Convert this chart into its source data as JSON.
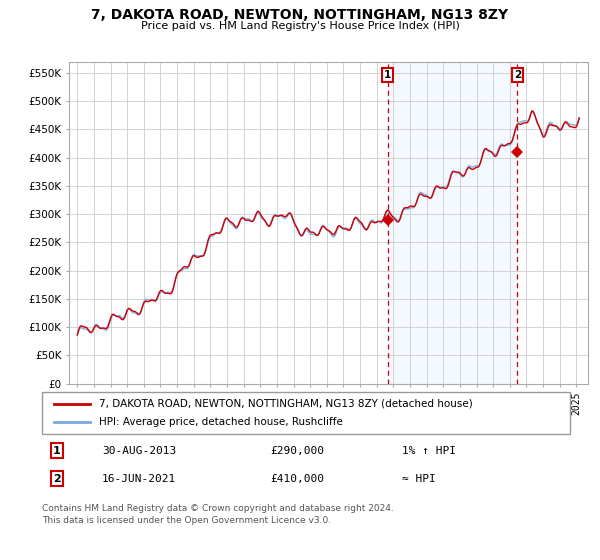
{
  "title": "7, DAKOTA ROAD, NEWTON, NOTTINGHAM, NG13 8ZY",
  "subtitle": "Price paid vs. HM Land Registry's House Price Index (HPI)",
  "legend_line1": "7, DAKOTA ROAD, NEWTON, NOTTINGHAM, NG13 8ZY (detached house)",
  "legend_line2": "HPI: Average price, detached house, Rushcliffe",
  "annotation1_date": "30-AUG-2013",
  "annotation1_price": "£290,000",
  "annotation1_hpi": "1% ↑ HPI",
  "annotation2_date": "16-JUN-2021",
  "annotation2_price": "£410,000",
  "annotation2_hpi": "≈ HPI",
  "footer1": "Contains HM Land Registry data © Crown copyright and database right 2024.",
  "footer2": "This data is licensed under the Open Government Licence v3.0.",
  "hpi_line_color": "#7aaadd",
  "price_line_color": "#cc0000",
  "marker_color": "#cc0000",
  "fill_color": "#ddeeff",
  "dashed_color": "#cc0000",
  "background_color": "#ffffff",
  "grid_color": "#cccccc",
  "ylim": [
    0,
    570000
  ],
  "yticks": [
    0,
    50000,
    100000,
    150000,
    200000,
    250000,
    300000,
    350000,
    400000,
    450000,
    500000,
    550000
  ],
  "ytick_labels": [
    "£0",
    "£50K",
    "£100K",
    "£150K",
    "£200K",
    "£250K",
    "£300K",
    "£350K",
    "£400K",
    "£450K",
    "£500K",
    "£550K"
  ],
  "sale1_x": 2013.66,
  "sale1_y": 290000,
  "sale2_x": 2021.46,
  "sale2_y": 410000,
  "shade_start": 2013.66,
  "shade_end": 2021.46,
  "xlim_left": 1994.5,
  "xlim_right": 2025.7
}
